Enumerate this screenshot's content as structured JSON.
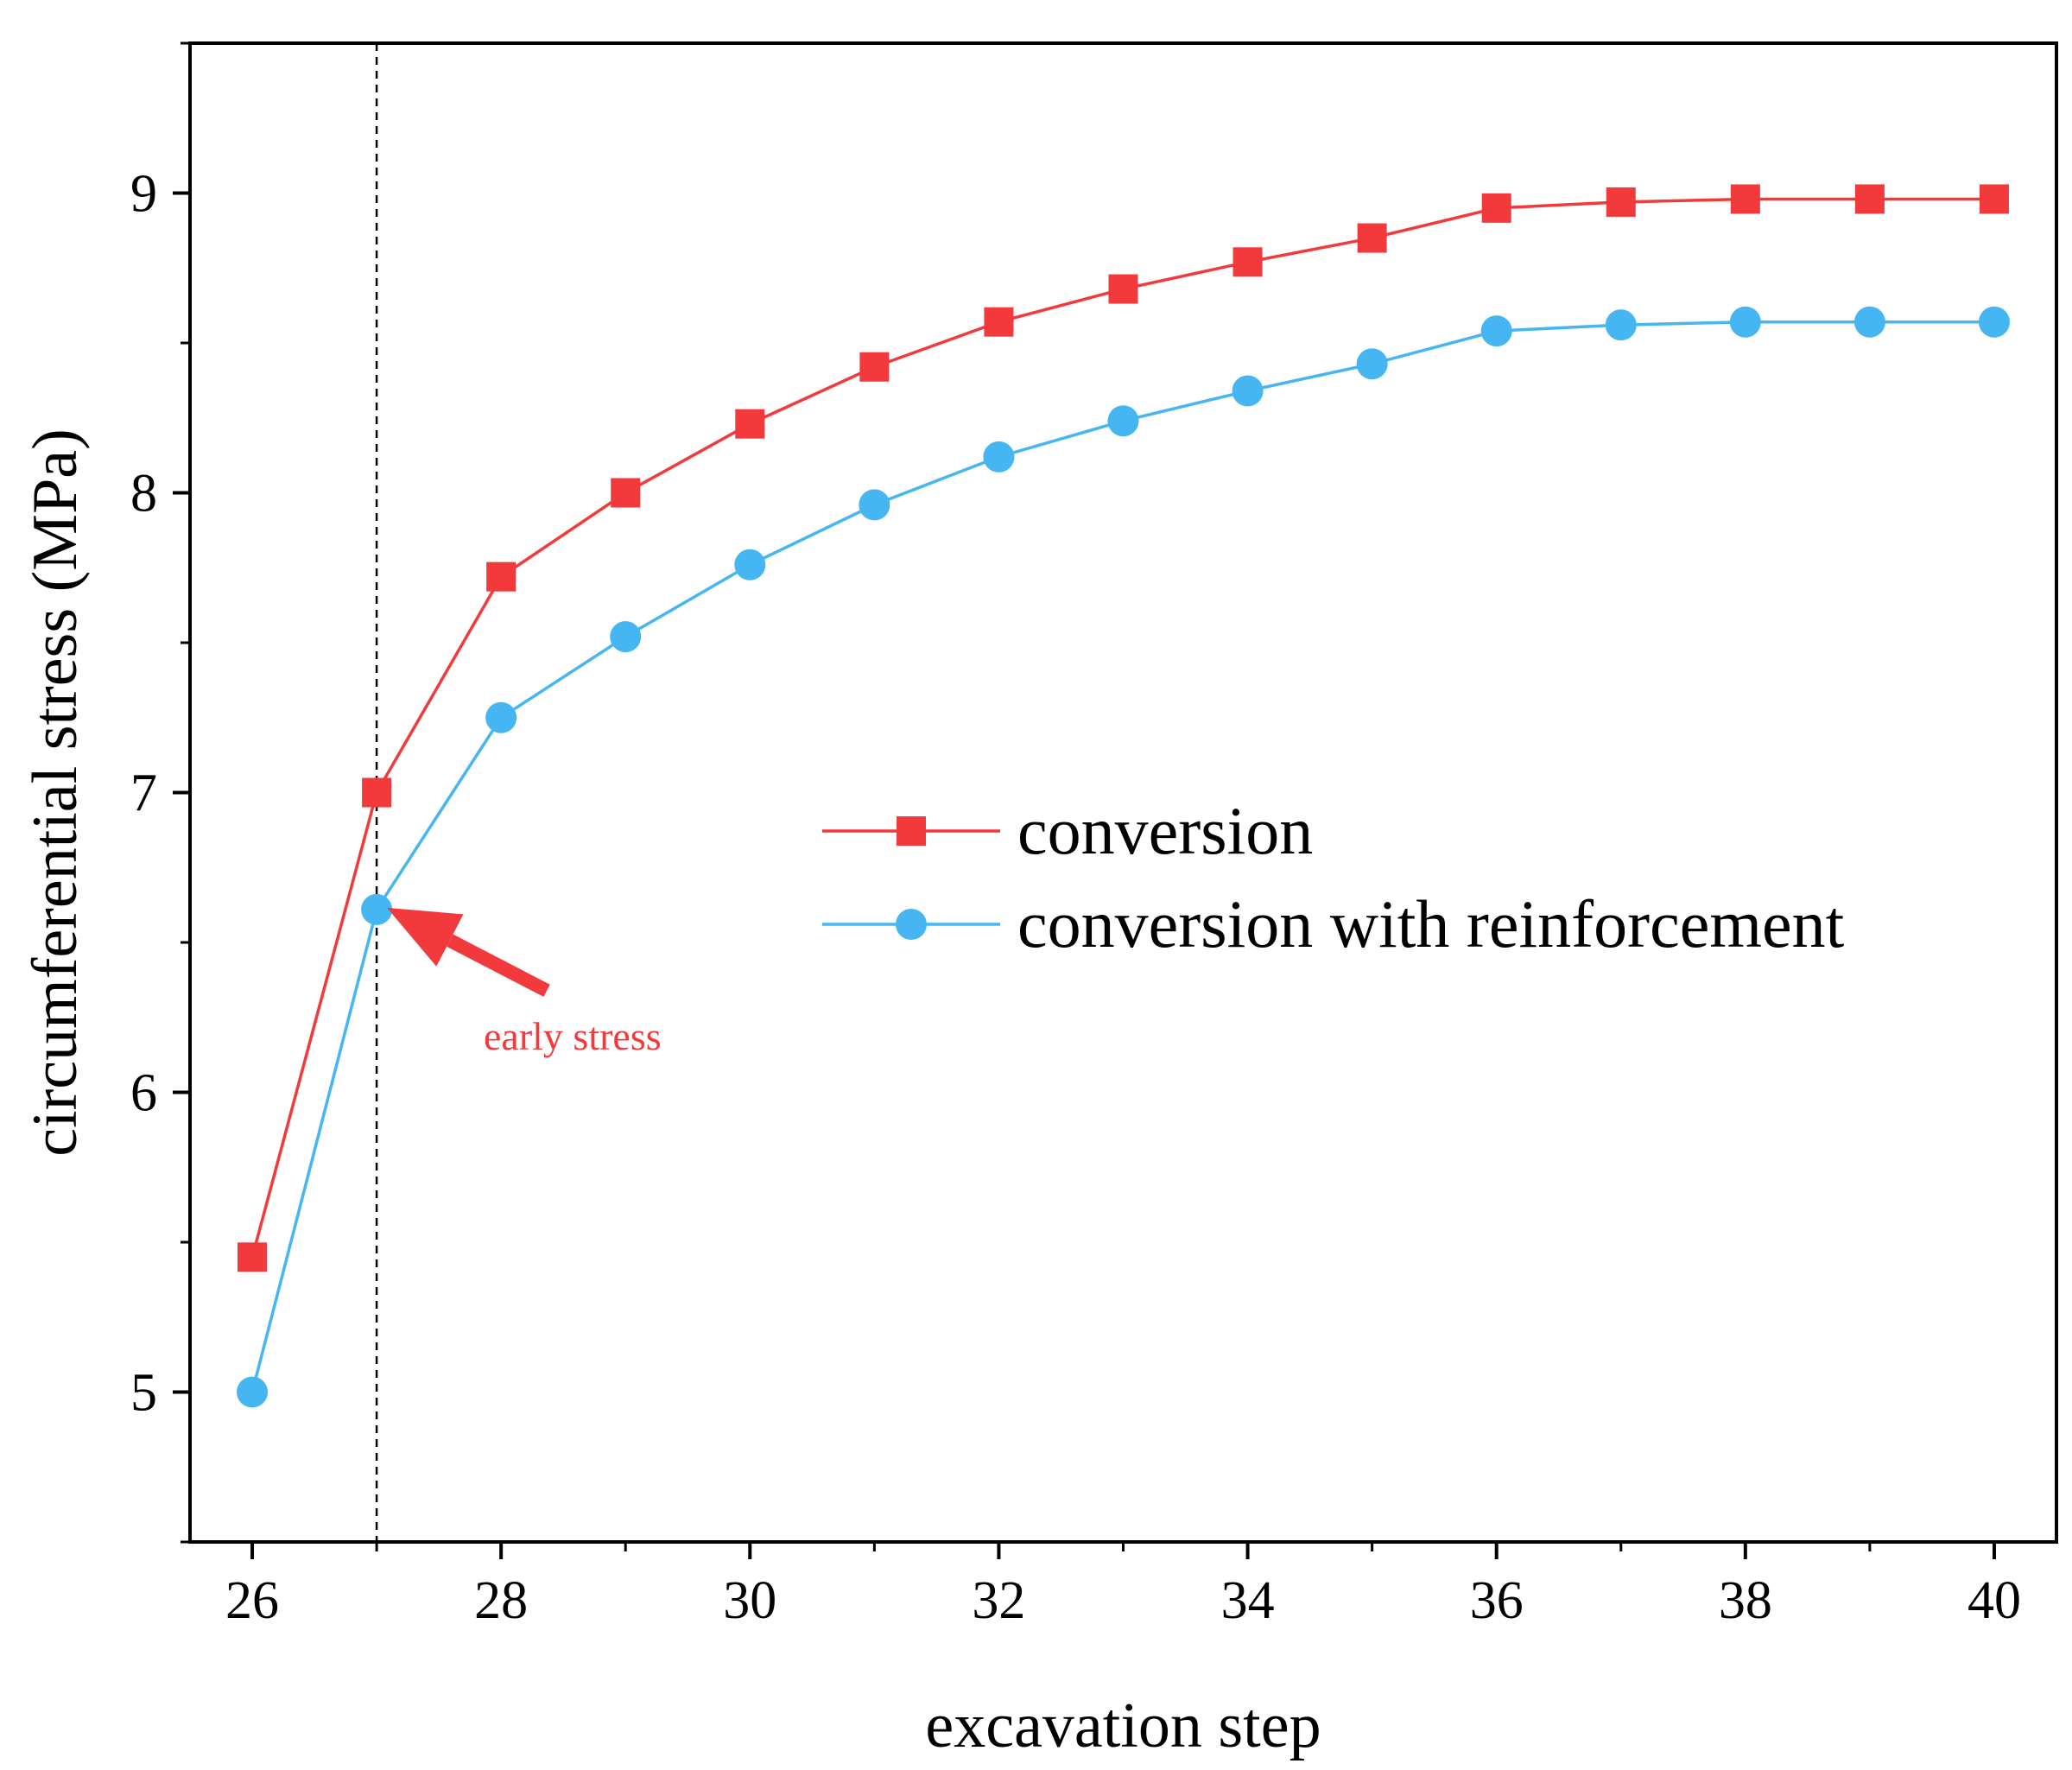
{
  "chart_data": {
    "type": "line",
    "title": "",
    "xlabel": "excavation step",
    "ylabel": "circumferential stress (MPa)",
    "xlim": [
      25.5,
      40.5
    ],
    "ylim": [
      4.5,
      9.5
    ],
    "xticks": [
      26,
      28,
      30,
      32,
      34,
      36,
      38,
      40
    ],
    "yticks": [
      5,
      6,
      7,
      8,
      9
    ],
    "grid": false,
    "legend_position": "center-right",
    "x": [
      26,
      27,
      28,
      29,
      30,
      31,
      32,
      33,
      34,
      35,
      36,
      37,
      38,
      39,
      40
    ],
    "series": [
      {
        "name": "conversion",
        "marker": "square",
        "color": "#f23a3d",
        "values": [
          5.45,
          7.0,
          7.72,
          8.0,
          8.23,
          8.42,
          8.57,
          8.68,
          8.77,
          8.85,
          8.95,
          8.97,
          8.98,
          8.98,
          8.98
        ]
      },
      {
        "name": "conversion with reinforcement",
        "marker": "circle",
        "color": "#45b6f2",
        "values": [
          5.0,
          6.61,
          7.25,
          7.52,
          7.76,
          7.96,
          8.12,
          8.24,
          8.34,
          8.43,
          8.54,
          8.56,
          8.57,
          8.57,
          8.57
        ]
      }
    ],
    "reference_line": {
      "x": 27,
      "style": "dashed"
    },
    "annotation": {
      "text": "early stress",
      "target_x": 27,
      "target_y": 6.61,
      "color": "#f23a3d"
    }
  }
}
